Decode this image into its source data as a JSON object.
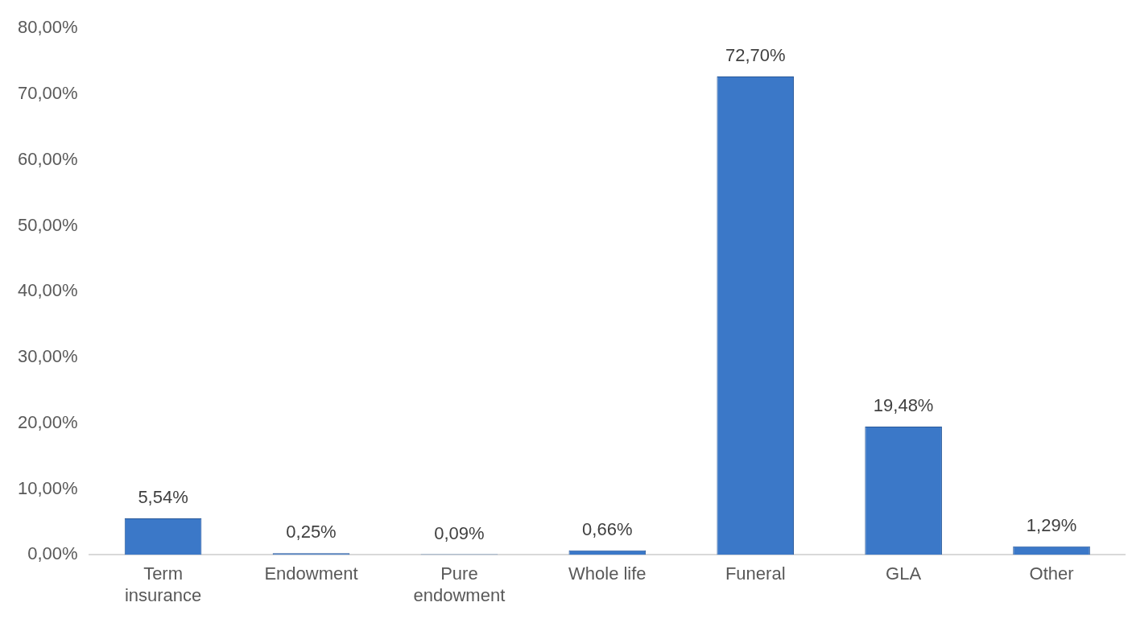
{
  "chart_data": {
    "type": "bar",
    "categories": [
      "Term insurance",
      "Endowment",
      "Pure endowment",
      "Whole life",
      "Funeral",
      "GLA",
      "Other"
    ],
    "values": [
      5.54,
      0.25,
      0.09,
      0.66,
      72.7,
      19.48,
      1.29
    ],
    "value_labels": [
      "5,54%",
      "0,25%",
      "0,09%",
      "0,66%",
      "72,70%",
      "19,48%",
      "1,29%"
    ],
    "color": "#3b78c8",
    "ylim": [
      0,
      80
    ],
    "yticks": [
      {
        "value": 0,
        "label": "0,00%"
      },
      {
        "value": 10,
        "label": "10,00%"
      },
      {
        "value": 20,
        "label": "20,00%"
      },
      {
        "value": 30,
        "label": "30,00%"
      },
      {
        "value": 40,
        "label": "40,00%"
      },
      {
        "value": 50,
        "label": "50,00%"
      },
      {
        "value": 60,
        "label": "60,00%"
      },
      {
        "value": 70,
        "label": "70,00%"
      },
      {
        "value": 80,
        "label": "80,00%"
      }
    ],
    "grid": false,
    "legend": false
  }
}
